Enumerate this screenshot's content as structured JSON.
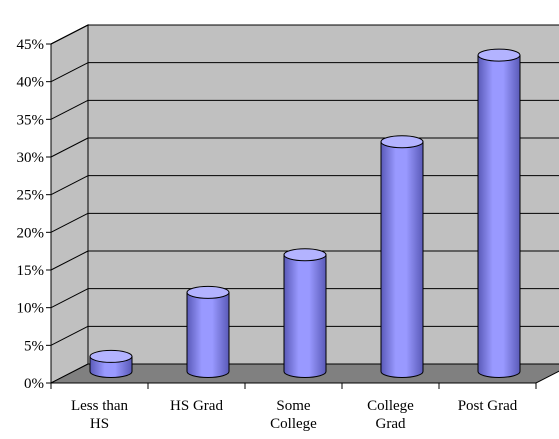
{
  "chart_data": {
    "type": "bar",
    "style": "3d-cylinder",
    "categories": [
      [
        "Less than",
        "HS"
      ],
      [
        "HS Grad"
      ],
      [
        "Some",
        "College"
      ],
      [
        "College",
        "Grad"
      ],
      [
        "Post Grad"
      ]
    ],
    "values": [
      2,
      10.5,
      15.5,
      30.5,
      42
    ],
    "ylim": [
      0,
      45
    ],
    "yticks": [
      "0%",
      "5%",
      "10%",
      "15%",
      "20%",
      "25%",
      "30%",
      "35%",
      "40%",
      "45%"
    ],
    "grid": true,
    "legend": "none",
    "colors": {
      "wall": "#c0c0c0",
      "floor": "#808080",
      "bar": "#9999ff",
      "bar_dark": "#5a5ab8",
      "bar_top": "#b3b3ff",
      "grid": "#000000"
    }
  }
}
